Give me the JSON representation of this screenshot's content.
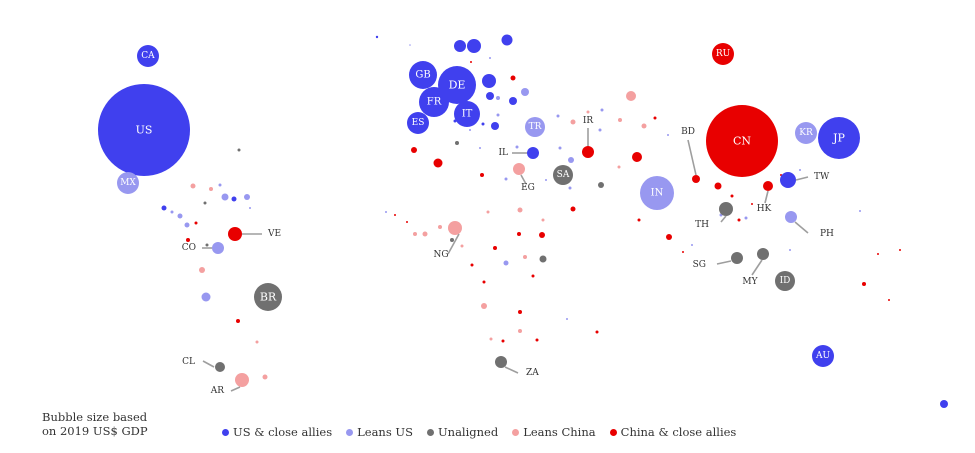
{
  "note": {
    "line1": "Bubble size based",
    "line2": "on 2019 US$ GDP"
  },
  "legend": [
    {
      "key": "us_allies",
      "label": "US & close allies",
      "color": "#4040ee"
    },
    {
      "key": "leans_us",
      "label": "Leans US",
      "color": "#9898f0"
    },
    {
      "key": "unaligned",
      "label": "Unaligned",
      "color": "#707070"
    },
    {
      "key": "leans_china",
      "label": "Leans China",
      "color": "#f4a0a0"
    },
    {
      "key": "china_allies",
      "label": "China & close allies",
      "color": "#e80000"
    }
  ],
  "chart_data": {
    "type": "scatter",
    "size_basis": "2019 US$ GDP",
    "labeled_countries": [
      {
        "code": "CA",
        "group": "us_allies"
      },
      {
        "code": "US",
        "group": "us_allies"
      },
      {
        "code": "MX",
        "group": "leans_us"
      },
      {
        "code": "VE",
        "group": "china_allies"
      },
      {
        "code": "CO",
        "group": "leans_us"
      },
      {
        "code": "BR",
        "group": "unaligned"
      },
      {
        "code": "CL",
        "group": "unaligned"
      },
      {
        "code": "AR",
        "group": "leans_china"
      },
      {
        "code": "GB",
        "group": "us_allies"
      },
      {
        "code": "DE",
        "group": "us_allies"
      },
      {
        "code": "FR",
        "group": "us_allies"
      },
      {
        "code": "IT",
        "group": "us_allies"
      },
      {
        "code": "ES",
        "group": "us_allies"
      },
      {
        "code": "TR",
        "group": "leans_us"
      },
      {
        "code": "IL",
        "group": "us_allies"
      },
      {
        "code": "IR",
        "group": "china_allies"
      },
      {
        "code": "EG",
        "group": "leans_china"
      },
      {
        "code": "SA",
        "group": "unaligned"
      },
      {
        "code": "NG",
        "group": "leans_china"
      },
      {
        "code": "ZA",
        "group": "unaligned"
      },
      {
        "code": "RU",
        "group": "china_allies"
      },
      {
        "code": "CN",
        "group": "china_allies"
      },
      {
        "code": "IN",
        "group": "leans_us"
      },
      {
        "code": "BD",
        "group": "china_allies"
      },
      {
        "code": "KR",
        "group": "leans_us"
      },
      {
        "code": "JP",
        "group": "us_allies"
      },
      {
        "code": "TW",
        "group": "us_allies"
      },
      {
        "code": "HK",
        "group": "china_allies"
      },
      {
        "code": "TH",
        "group": "unaligned"
      },
      {
        "code": "PH",
        "group": "leans_us"
      },
      {
        "code": "SG",
        "group": "unaligned"
      },
      {
        "code": "MY",
        "group": "unaligned"
      },
      {
        "code": "ID",
        "group": "unaligned"
      },
      {
        "code": "AU",
        "group": "us_allies"
      }
    ]
  }
}
